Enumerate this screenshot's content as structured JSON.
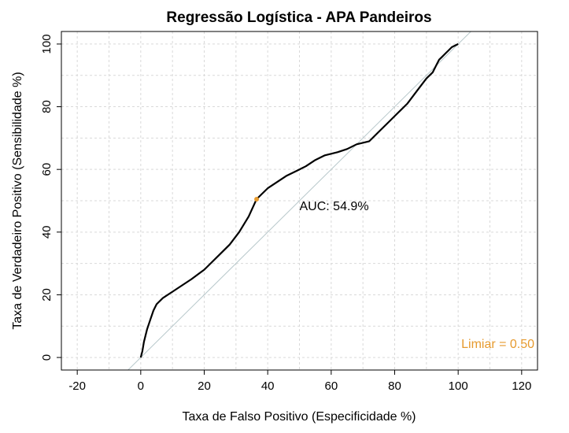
{
  "chart_data": {
    "type": "line",
    "title": "Regressão Logística - APA Pandeiros",
    "xlabel": "Taxa de Falso Positivo (Especificidade %)",
    "ylabel": "Taxa de Verdadeiro Positivo (Sensibilidade %)",
    "xlim": [
      -25,
      125
    ],
    "ylim": [
      -4,
      104
    ],
    "xticks": [
      -20,
      0,
      20,
      40,
      60,
      80,
      100,
      120
    ],
    "yticks": [
      0,
      20,
      40,
      60,
      80,
      100
    ],
    "xtick_labels": [
      "-20",
      "0",
      "20",
      "40",
      "60",
      "80",
      "100",
      "120"
    ],
    "ytick_labels": [
      "0",
      "20",
      "40",
      "60",
      "80",
      "100"
    ],
    "grid": true,
    "series": [
      {
        "color": "#000000",
        "x": [
          0,
          0.5,
          1,
          1.5,
          2,
          3,
          4,
          5,
          7,
          10,
          13,
          16,
          20,
          22,
          25,
          28,
          31,
          34,
          36.5,
          38,
          40,
          43,
          46,
          49,
          52,
          55,
          58,
          62,
          65,
          68,
          72,
          75,
          78,
          81,
          84,
          87,
          90,
          92,
          93,
          94,
          95,
          96,
          97,
          98,
          100
        ],
        "y": [
          0,
          2,
          5,
          7,
          9,
          12,
          15,
          17,
          19,
          21,
          23,
          25,
          28,
          30,
          33,
          36,
          40,
          45,
          50.5,
          52,
          54,
          56,
          58,
          59.5,
          61,
          63,
          64.5,
          65.5,
          66.5,
          68,
          69,
          72,
          75,
          78,
          81,
          85,
          89,
          91,
          93,
          95,
          96,
          97,
          98,
          99,
          100
        ]
      }
    ],
    "diagonal": {
      "x": [
        -4,
        104
      ],
      "y": [
        -4,
        104
      ],
      "color": "#b9c9cc"
    },
    "threshold_point": {
      "x": 36.5,
      "y": 50.5,
      "color": "#e69a2e"
    },
    "annotations": [
      {
        "text": "AUC: 54.9%",
        "x": 50,
        "y": 47,
        "color": "#000000"
      },
      {
        "text": "Limiar = 0.50",
        "x": 112.5,
        "y": 3,
        "color": "#e69a2e"
      }
    ]
  }
}
